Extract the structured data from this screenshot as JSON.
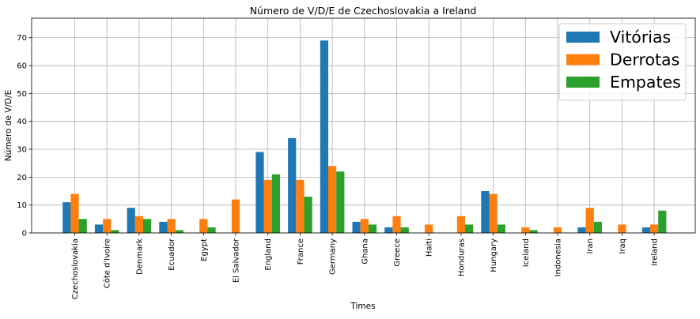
{
  "chart_data": {
    "type": "bar",
    "title": "Número de V/D/E de Czechoslovakia a Ireland",
    "xlabel": "Times",
    "ylabel": "Número de V/D/E",
    "ylim": [
      0,
      77
    ],
    "yticks": [
      0,
      10,
      20,
      30,
      40,
      50,
      60,
      70
    ],
    "grid": true,
    "legend_position": "top-right",
    "categories": [
      "Czechoslovakia",
      "Côte d'Ivoire",
      "Denmark",
      "Ecuador",
      "Egypt",
      "El Salvador",
      "England",
      "France",
      "Germany",
      "Ghana",
      "Greece",
      "Haiti",
      "Honduras",
      "Hungary",
      "Iceland",
      "Indonesia",
      "Iran",
      "Iraq",
      "Ireland"
    ],
    "series": [
      {
        "name": "Vitórias",
        "color": "#1f77b4",
        "values": [
          11,
          3,
          9,
          4,
          0,
          0,
          29,
          34,
          69,
          4,
          2,
          0,
          0,
          15,
          0,
          0,
          2,
          0,
          2
        ]
      },
      {
        "name": "Derrotas",
        "color": "#ff7f0e",
        "values": [
          14,
          5,
          6,
          5,
          5,
          12,
          19,
          19,
          24,
          5,
          6,
          3,
          6,
          14,
          2,
          2,
          9,
          3,
          3
        ]
      },
      {
        "name": "Empates",
        "color": "#2ca02c",
        "values": [
          5,
          1,
          5,
          1,
          2,
          0,
          21,
          13,
          22,
          3,
          2,
          0,
          3,
          3,
          1,
          0,
          4,
          0,
          8
        ]
      }
    ]
  }
}
